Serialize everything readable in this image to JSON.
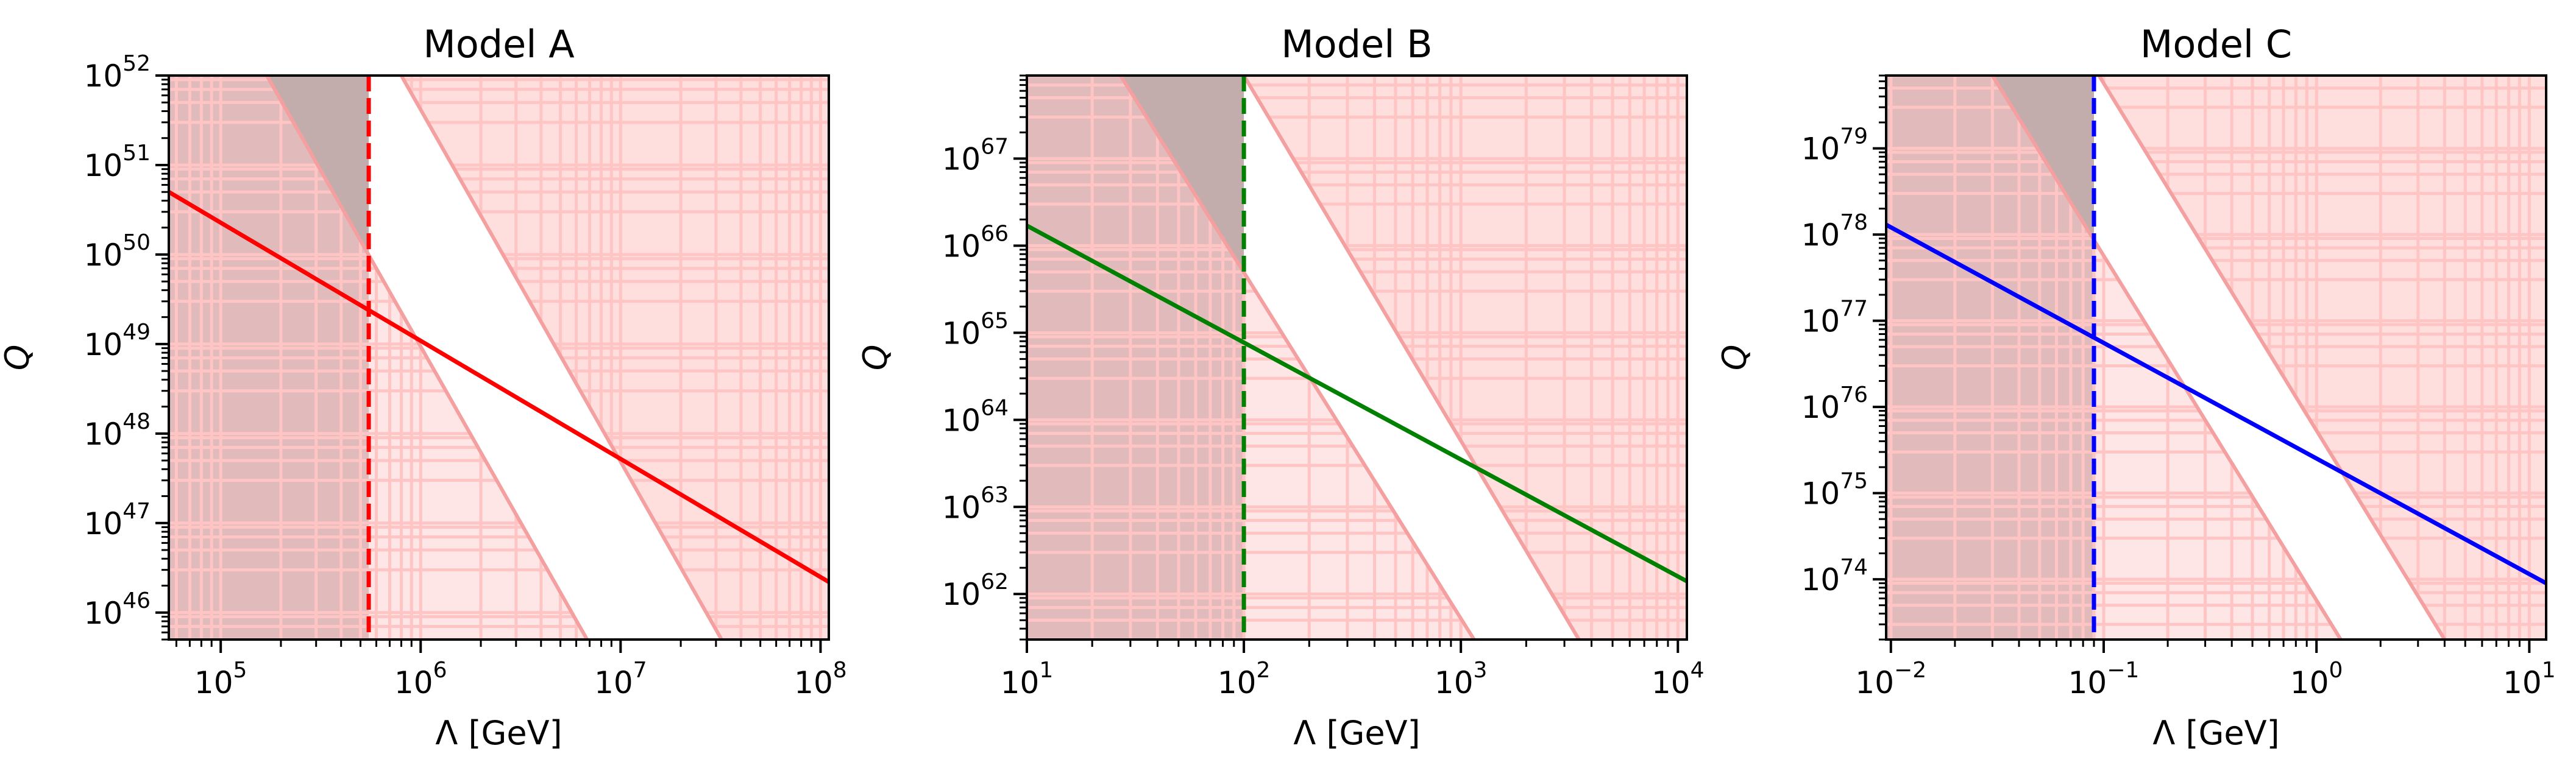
{
  "chart_data": [
    {
      "type": "line",
      "title": "Model A",
      "xlabel": "Λ [GeV]",
      "ylabel": "Q",
      "xscale": "log",
      "yscale": "log",
      "xlim": [
        55000,
        110000000
      ],
      "ylim": [
        5e+45,
        1e+52
      ],
      "xticks": [
        {
          "base": "10",
          "exp": "5",
          "value": 100000.0
        },
        {
          "base": "10",
          "exp": "6",
          "value": 1000000.0
        },
        {
          "base": "10",
          "exp": "7",
          "value": 10000000.0
        },
        {
          "base": "10",
          "exp": "8",
          "value": 100000000.0
        }
      ],
      "yticks": [
        {
          "base": "10",
          "exp": "46",
          "value": 1e+46
        },
        {
          "base": "10",
          "exp": "47",
          "value": 1e+47
        },
        {
          "base": "10",
          "exp": "48",
          "value": 1e+48
        },
        {
          "base": "10",
          "exp": "49",
          "value": 1e+49
        },
        {
          "base": "10",
          "exp": "50",
          "value": 1e+50
        },
        {
          "base": "10",
          "exp": "51",
          "value": 1e+51
        },
        {
          "base": "10",
          "exp": "52",
          "value": 1e+52
        }
      ],
      "series": [
        {
          "color": "#ff0000",
          "x": [
            55000,
            110000000
          ],
          "y": [
            5e+50,
            2.2e+46
          ]
        }
      ],
      "vline": {
        "x": 550000,
        "color": "#ff0000",
        "style": "dashed"
      },
      "bound_left": {
        "x": [
          170000,
          6800000
        ],
        "y": [
          1e+52,
          5e+45
        ]
      },
      "bound_right": {
        "x": [
          800000,
          32000000
        ],
        "y": [
          1e+52,
          5e+45
        ]
      },
      "grid": "minor",
      "region_colors": {
        "excluded": "#ffdede",
        "grid": "#ffc4c4",
        "bound": "#f4a0a0",
        "gray": "#bfbfbf"
      }
    },
    {
      "type": "line",
      "title": "Model B",
      "xlabel": "Λ [GeV]",
      "ylabel": "Q",
      "xscale": "log",
      "yscale": "log",
      "xlim": [
        10,
        11000
      ],
      "ylim": [
        3e+61,
        9e+67
      ],
      "xticks": [
        {
          "base": "10",
          "exp": "1",
          "value": 10
        },
        {
          "base": "10",
          "exp": "2",
          "value": 100
        },
        {
          "base": "10",
          "exp": "3",
          "value": 1000
        },
        {
          "base": "10",
          "exp": "4",
          "value": 10000
        }
      ],
      "yticks": [
        {
          "base": "10",
          "exp": "62",
          "value": 1e+62
        },
        {
          "base": "10",
          "exp": "63",
          "value": 1e+63
        },
        {
          "base": "10",
          "exp": "64",
          "value": 1e+64
        },
        {
          "base": "10",
          "exp": "65",
          "value": 1e+65
        },
        {
          "base": "10",
          "exp": "66",
          "value": 1e+66
        },
        {
          "base": "10",
          "exp": "67",
          "value": 1e+67
        }
      ],
      "series": [
        {
          "color": "#008000",
          "x": [
            10,
            11000
          ],
          "y": [
            1.7e+66,
            1.4e+62
          ]
        }
      ],
      "vline": {
        "x": 100,
        "color": "#008000",
        "style": "dashed"
      },
      "bound_left": {
        "x": [
          27,
          1150
        ],
        "y": [
          9e+67,
          3e+61
        ]
      },
      "bound_right": {
        "x": [
          100,
          3500
        ],
        "y": [
          9e+67,
          3e+61
        ]
      },
      "grid": "minor",
      "region_colors": {
        "excluded": "#ffdede",
        "grid": "#ffc4c4",
        "bound": "#f4a0a0",
        "gray": "#bfbfbf"
      }
    },
    {
      "type": "line",
      "title": "Model C",
      "xlabel": "Λ [GeV]",
      "ylabel": "Q",
      "xscale": "log",
      "yscale": "log",
      "xlim": [
        0.0095,
        12
      ],
      "ylim": [
        2e+73,
        7e+79
      ],
      "xticks": [
        {
          "base": "10",
          "exp": "−2",
          "value": 0.01
        },
        {
          "base": "10",
          "exp": "−1",
          "value": 0.1
        },
        {
          "base": "10",
          "exp": "0",
          "value": 1
        },
        {
          "base": "10",
          "exp": "1",
          "value": 10
        }
      ],
      "yticks": [
        {
          "base": "10",
          "exp": "74",
          "value": 1e+74
        },
        {
          "base": "10",
          "exp": "75",
          "value": 1e+75
        },
        {
          "base": "10",
          "exp": "76",
          "value": 1e+76
        },
        {
          "base": "10",
          "exp": "77",
          "value": 1e+77
        },
        {
          "base": "10",
          "exp": "78",
          "value": 1e+78
        },
        {
          "base": "10",
          "exp": "79",
          "value": 1e+79
        }
      ],
      "series": [
        {
          "color": "#0000ff",
          "x": [
            0.0095,
            12
          ],
          "y": [
            1.3e+78,
            9e+73
          ]
        }
      ],
      "vline": {
        "x": 0.09,
        "color": "#0000ff",
        "style": "dashed"
      },
      "bound_left": {
        "x": [
          0.03,
          1.3
        ],
        "y": [
          7e+79,
          2e+73
        ]
      },
      "bound_right": {
        "x": [
          0.095,
          4
        ],
        "y": [
          7e+79,
          2e+73
        ]
      },
      "grid": "minor",
      "region_colors": {
        "excluded": "#ffdede",
        "grid": "#ffc4c4",
        "bound": "#f4a0a0",
        "gray": "#bfbfbf"
      }
    }
  ]
}
